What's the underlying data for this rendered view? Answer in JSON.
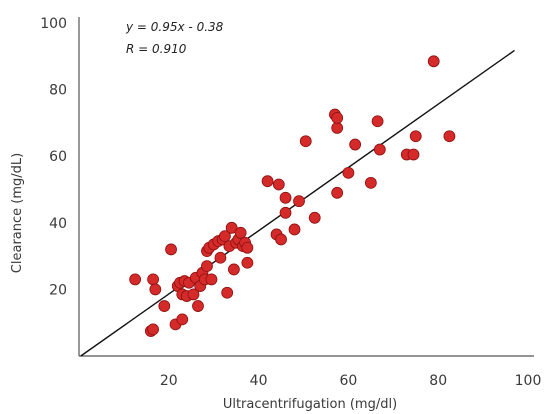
{
  "chart_data": {
    "type": "scatter",
    "title": "",
    "xlabel": "Ultracentrifugation (mg/dl)",
    "ylabel": "Clearance (mg/dL)",
    "xlim": [
      0,
      100
    ],
    "ylim": [
      0,
      100
    ],
    "x_ticks": [
      "20",
      "40",
      "60",
      "80",
      "100"
    ],
    "y_ticks": [
      "20",
      "40",
      "60",
      "80",
      "100"
    ],
    "grid": false,
    "annotations": [
      "y = 0.95x - 0.38",
      "R = 0.910"
    ],
    "regression_line": {
      "slope": 0.95,
      "intercept": -0.38
    },
    "marker_color": "#d42a2a",
    "marker_edge_color": "#8f1010",
    "line_color": "#111111",
    "points": [
      [
        12.5,
        23
      ],
      [
        16,
        7.5
      ],
      [
        16.5,
        8
      ],
      [
        16.5,
        23
      ],
      [
        17,
        20
      ],
      [
        19,
        15
      ],
      [
        20.5,
        32
      ],
      [
        21.5,
        9.5
      ],
      [
        22,
        21
      ],
      [
        22.5,
        22
      ],
      [
        23,
        18.5
      ],
      [
        23,
        11
      ],
      [
        23.5,
        22.5
      ],
      [
        24,
        18
      ],
      [
        24.5,
        22
      ],
      [
        25.5,
        18.5
      ],
      [
        26,
        23.5
      ],
      [
        26.5,
        15
      ],
      [
        27,
        21
      ],
      [
        27.5,
        25
      ],
      [
        28,
        23
      ],
      [
        28.5,
        27
      ],
      [
        28.5,
        31.5
      ],
      [
        29,
        32.5
      ],
      [
        29.5,
        23
      ],
      [
        30,
        33.5
      ],
      [
        31,
        34.5
      ],
      [
        31.5,
        29.5
      ],
      [
        32,
        35
      ],
      [
        32.5,
        36
      ],
      [
        33,
        19
      ],
      [
        33.5,
        33
      ],
      [
        34,
        38.5
      ],
      [
        34.5,
        26
      ],
      [
        35,
        34
      ],
      [
        35.5,
        35
      ],
      [
        36,
        37
      ],
      [
        36.5,
        33
      ],
      [
        37,
        34
      ],
      [
        37.5,
        28
      ],
      [
        37.5,
        32.5
      ],
      [
        42,
        52.5
      ],
      [
        44,
        36.5
      ],
      [
        44.5,
        51.5
      ],
      [
        45,
        35
      ],
      [
        46,
        43
      ],
      [
        46,
        47.5
      ],
      [
        48,
        38
      ],
      [
        49,
        46.5
      ],
      [
        50.5,
        64.5
      ],
      [
        52.5,
        41.5
      ],
      [
        57,
        72.5
      ],
      [
        57.5,
        68.5
      ],
      [
        57.5,
        71.5
      ],
      [
        57.5,
        49
      ],
      [
        60,
        55
      ],
      [
        61.5,
        63.5
      ],
      [
        65,
        52
      ],
      [
        66.5,
        70.5
      ],
      [
        67,
        62
      ],
      [
        73,
        60.5
      ],
      [
        74.5,
        60.5
      ],
      [
        75,
        66
      ],
      [
        79,
        88.5
      ],
      [
        82.5,
        66
      ]
    ]
  }
}
